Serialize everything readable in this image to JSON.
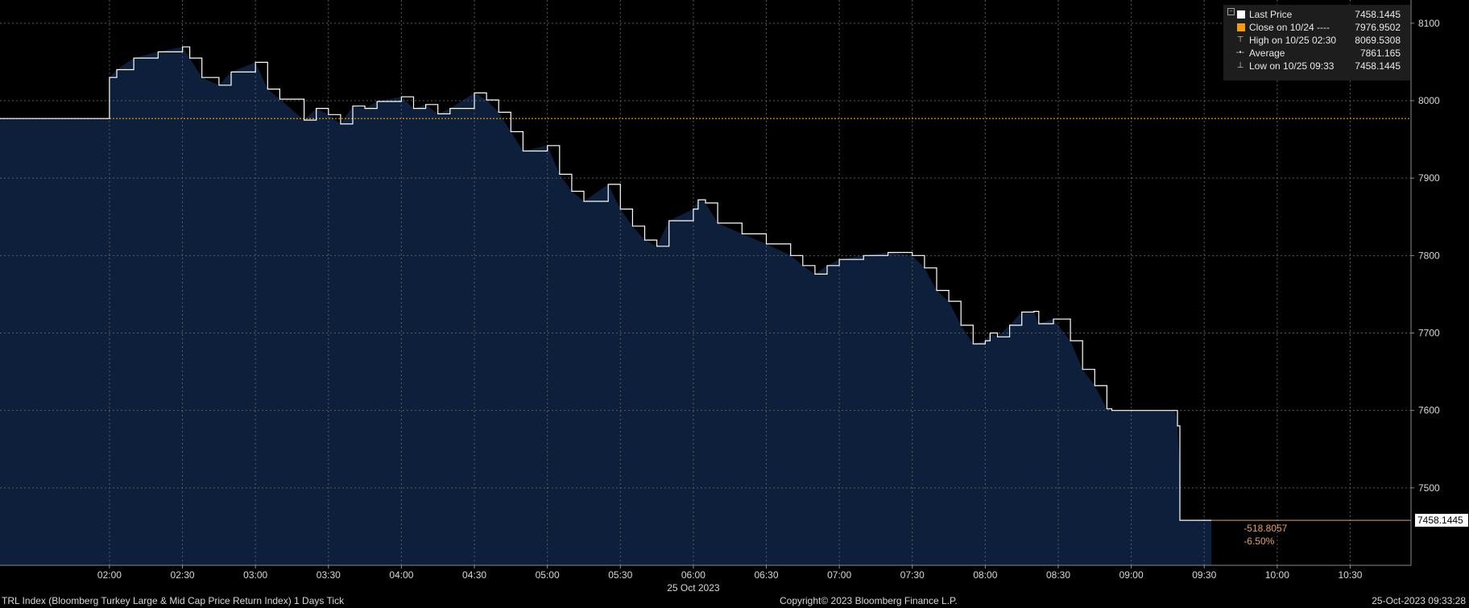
{
  "chart_data": {
    "type": "area",
    "title": "TRL Index (Bloomberg Turkey Large & Mid Cap Price Return Index) 1 Days  Tick",
    "date_label": "25 Oct 2023",
    "x_ticks": [
      "02:00",
      "02:30",
      "03:00",
      "03:30",
      "04:00",
      "04:30",
      "05:00",
      "05:30",
      "06:00",
      "06:30",
      "07:00",
      "07:30",
      "08:00",
      "08:30",
      "09:00",
      "09:30",
      "10:00",
      "10:30"
    ],
    "y_ticks": [
      "8100",
      "8000",
      "7900",
      "7800",
      "7700",
      "7600",
      "7500"
    ],
    "ylim": [
      7400,
      8130
    ],
    "xlim": [
      "01:15",
      "10:55"
    ],
    "grid": true,
    "legend_position": "top-right",
    "series": [
      {
        "name": "Last Price",
        "x": [
          "01:15",
          "02:00",
          "02:00",
          "02:03",
          "02:10",
          "02:20",
          "02:30",
          "02:33",
          "02:38",
          "02:45",
          "02:50",
          "03:00",
          "03:05",
          "03:10",
          "03:20",
          "03:25",
          "03:30",
          "03:35",
          "03:40",
          "03:45",
          "03:50",
          "04:00",
          "04:05",
          "04:10",
          "04:15",
          "04:20",
          "04:30",
          "04:35",
          "04:40",
          "04:45",
          "04:50",
          "05:00",
          "05:05",
          "05:10",
          "05:15",
          "05:25",
          "05:30",
          "05:35",
          "05:40",
          "05:45",
          "05:50",
          "06:00",
          "06:02",
          "06:05",
          "06:10",
          "06:20",
          "06:30",
          "06:40",
          "06:45",
          "06:50",
          "06:55",
          "07:00",
          "07:10",
          "07:20",
          "07:30",
          "07:35",
          "07:40",
          "07:45",
          "07:50",
          "07:55",
          "08:00",
          "08:02",
          "08:05",
          "08:10",
          "08:15",
          "08:20",
          "08:22",
          "08:28",
          "08:35",
          "08:40",
          "08:45",
          "08:50",
          "08:52",
          "09:05",
          "09:10",
          "09:18",
          "09:19",
          "09:20",
          "09:20",
          "09:33"
        ],
        "y": [
          7976.95,
          7976.95,
          8030,
          8040,
          8055,
          8063,
          8069.53,
          8055,
          8030,
          8020,
          8037,
          8049.53,
          8015,
          8002,
          7975,
          7990,
          7982,
          7970,
          7993,
          7990,
          7999,
          8005,
          7990,
          7995,
          7983,
          7990,
          8010,
          8001,
          7985,
          7960,
          7935,
          7942,
          7905,
          7883,
          7870,
          7892,
          7860,
          7838,
          7820,
          7812,
          7845,
          7860,
          7872,
          7868,
          7842,
          7828,
          7815,
          7800,
          7787,
          7776,
          7787,
          7795,
          7800,
          7804,
          7800,
          7784,
          7755,
          7741,
          7710,
          7686,
          7690,
          7700,
          7695,
          7710,
          7727,
          7728,
          7712,
          7718,
          7690,
          7653,
          7632,
          7602,
          7600,
          7600,
          7600,
          7600,
          7580,
          7520,
          7458.14,
          7458.14
        ]
      }
    ],
    "close_line": {
      "label": "Close on 10/24",
      "value": 7976.9502
    },
    "end_label": "7458.1445",
    "change_abs": "-518.8057",
    "change_pct": "-6.50%"
  },
  "legend": [
    {
      "label": "Last Price",
      "value": "7458.1445",
      "color": "#ffffff"
    },
    {
      "label": "Close on 10/24 ----",
      "value": "7976.9502",
      "color": "#f39c12"
    },
    {
      "label": "High on 10/25 02:30",
      "value": "8069.5308",
      "icon": "high-marker-icon"
    },
    {
      "label": "Average",
      "value": "7861.165",
      "icon": "average-marker-icon"
    },
    {
      "label": "Low on 10/25 09:33",
      "value": "7458.1445",
      "icon": "low-marker-icon"
    }
  ],
  "footer": {
    "left": "TRL Index (Bloomberg Turkey Large & Mid Cap Price Return Index) 1 Days  Tick",
    "center": "Copyright© 2023 Bloomberg Finance L.P.",
    "right": "25-Oct-2023 09:33:28"
  },
  "colors": {
    "background": "#000000",
    "area_fill": "#0d1f3a",
    "price_line": "#ffffff",
    "grid": "#5a5a5a",
    "close_line": "#f39c12",
    "change_text": "#e8a060",
    "legend_bg": "#1d1d1d"
  }
}
